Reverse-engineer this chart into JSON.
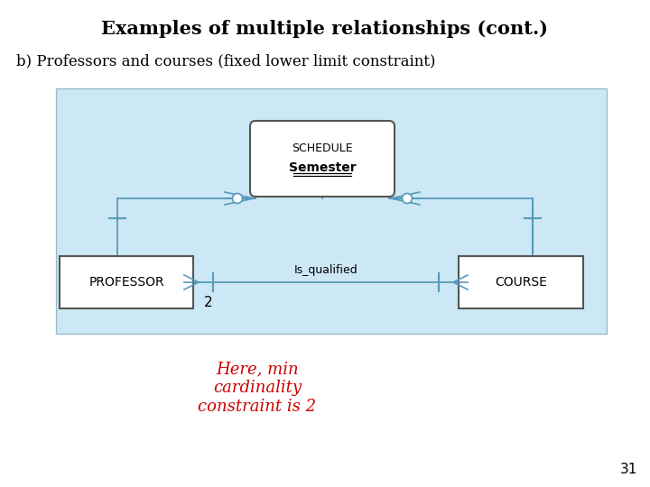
{
  "title": "Examples of multiple relationships (cont.)",
  "subtitle": "b) Professors and courses (fixed lower limit constraint)",
  "annotation": "Here, min\ncardinality\nconstraint is 2",
  "annotation_color": "#cc0000",
  "background_color": "#ffffff",
  "diagram_bg_color": "#cce8f4",
  "entity_professor": "PROFESSOR",
  "entity_course": "COURSE",
  "relationship_main": "Is_qualified",
  "relationship_assoc_line1": "SCHEDULE",
  "relationship_assoc_line2": "Semester",
  "min_card_label": "2",
  "page_number": "31",
  "line_color": "#5599bb",
  "entity_box_color": "#ffffff",
  "assoc_box_color": "#ffffff"
}
